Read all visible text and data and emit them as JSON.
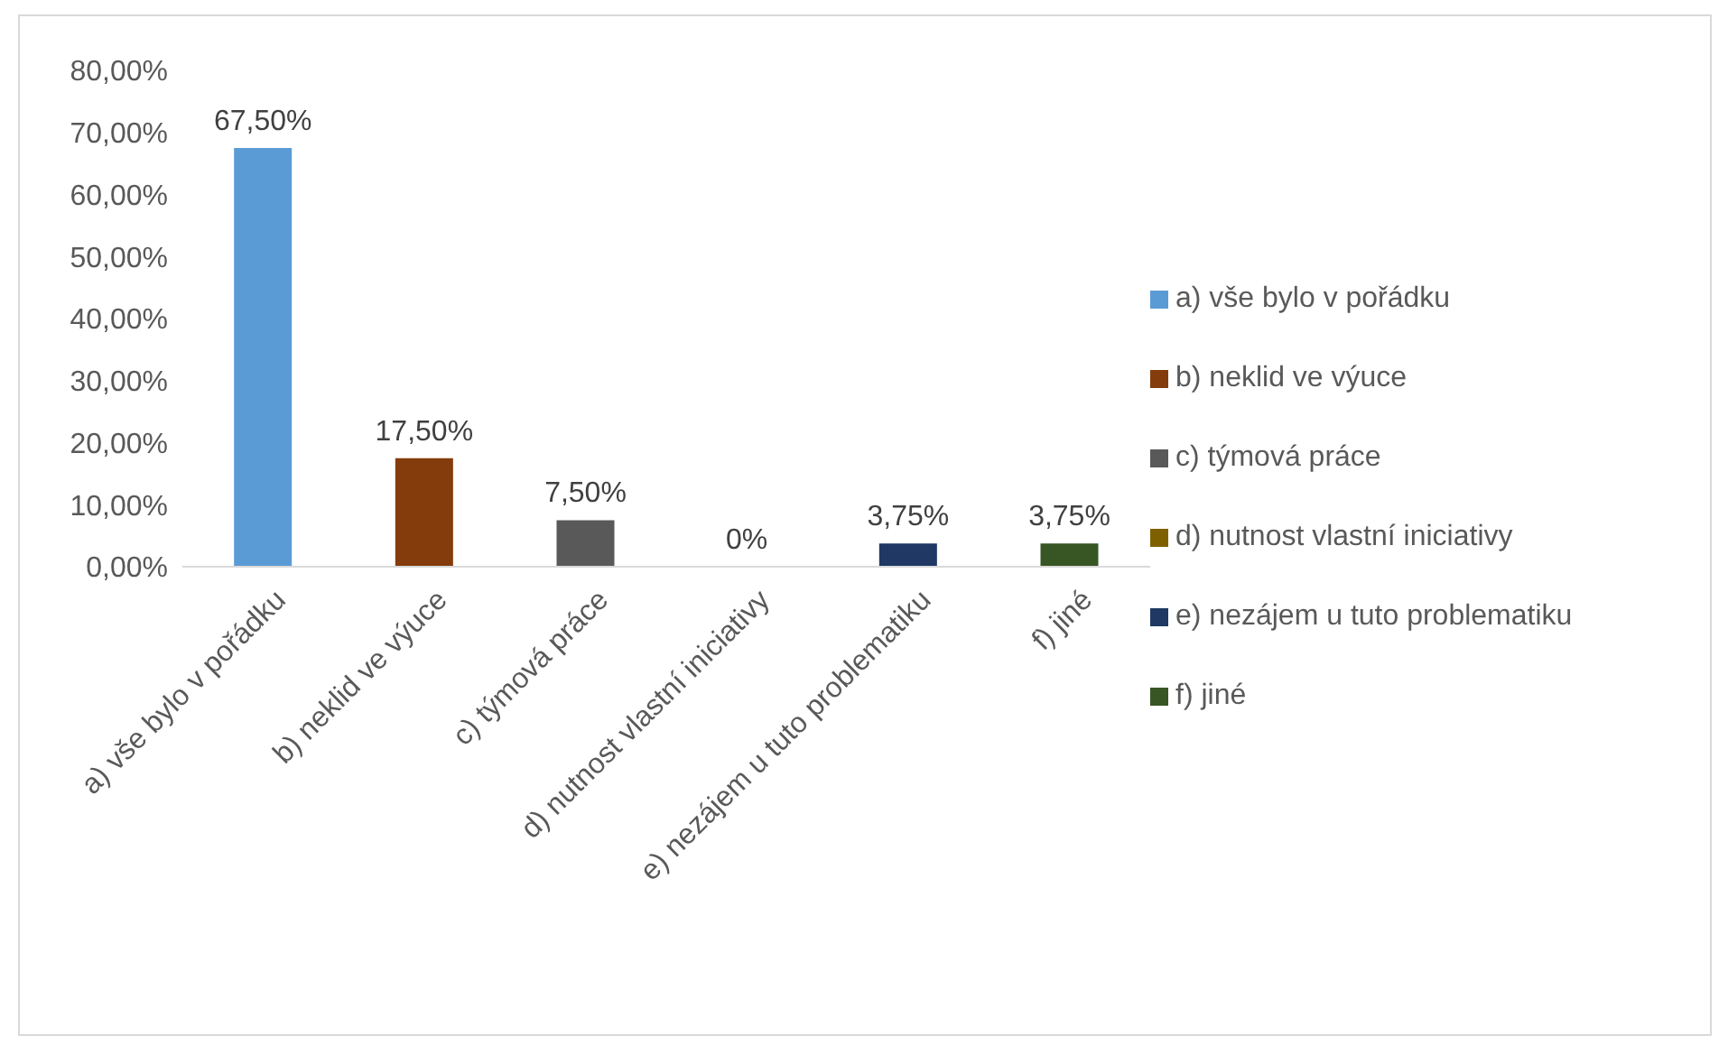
{
  "chart_data": {
    "type": "bar",
    "categories": [
      "a) vše bylo v pořádku",
      "b) neklid ve výuce",
      "c) týmová práce",
      "d) nutnost vlastní iniciativy",
      "e) nezájem u tuto problematiku",
      "f) jiné"
    ],
    "series": [
      {
        "name": "a) vše bylo v pořádku",
        "color": "#5b9bd5",
        "values": [
          67.5,
          null,
          null,
          null,
          null,
          null
        ],
        "value_labels": [
          "67,50%",
          null,
          null,
          null,
          null,
          null
        ]
      },
      {
        "name": "b) neklid ve výuce",
        "color": "#843c0c",
        "values": [
          null,
          17.5,
          null,
          null,
          null,
          null
        ],
        "value_labels": [
          null,
          "17,50%",
          null,
          null,
          null,
          null
        ]
      },
      {
        "name": "c) týmová práce",
        "color": "#595959",
        "values": [
          null,
          null,
          7.5,
          null,
          null,
          null
        ],
        "value_labels": [
          null,
          null,
          "7,50%",
          null,
          null,
          null
        ]
      },
      {
        "name": "d) nutnost vlastní iniciativy",
        "color": "#7f6000",
        "values": [
          null,
          null,
          null,
          0,
          null,
          null
        ],
        "value_labels": [
          null,
          null,
          null,
          "0%",
          null,
          null
        ]
      },
      {
        "name": "e) nezájem u tuto problematiku",
        "color": "#1f3864",
        "values": [
          null,
          null,
          null,
          null,
          3.75,
          null
        ],
        "value_labels": [
          null,
          null,
          null,
          null,
          "3,75%",
          null
        ]
      },
      {
        "name": "f) jiné",
        "color": "#375623",
        "values": [
          null,
          null,
          null,
          null,
          null,
          3.75
        ],
        "value_labels": [
          null,
          null,
          null,
          null,
          null,
          "3,75%"
        ]
      }
    ],
    "stacked": true,
    "ylim": [
      0,
      80
    ],
    "yticks": [
      {
        "value": 0,
        "label": "0,00%"
      },
      {
        "value": 10,
        "label": "10,00%"
      },
      {
        "value": 20,
        "label": "20,00%"
      },
      {
        "value": 30,
        "label": "30,00%"
      },
      {
        "value": 40,
        "label": "40,00%"
      },
      {
        "value": 50,
        "label": "50,00%"
      },
      {
        "value": 60,
        "label": "60,00%"
      },
      {
        "value": 70,
        "label": "70,00%"
      },
      {
        "value": 80,
        "label": "80,00%"
      }
    ],
    "legend": "right"
  }
}
